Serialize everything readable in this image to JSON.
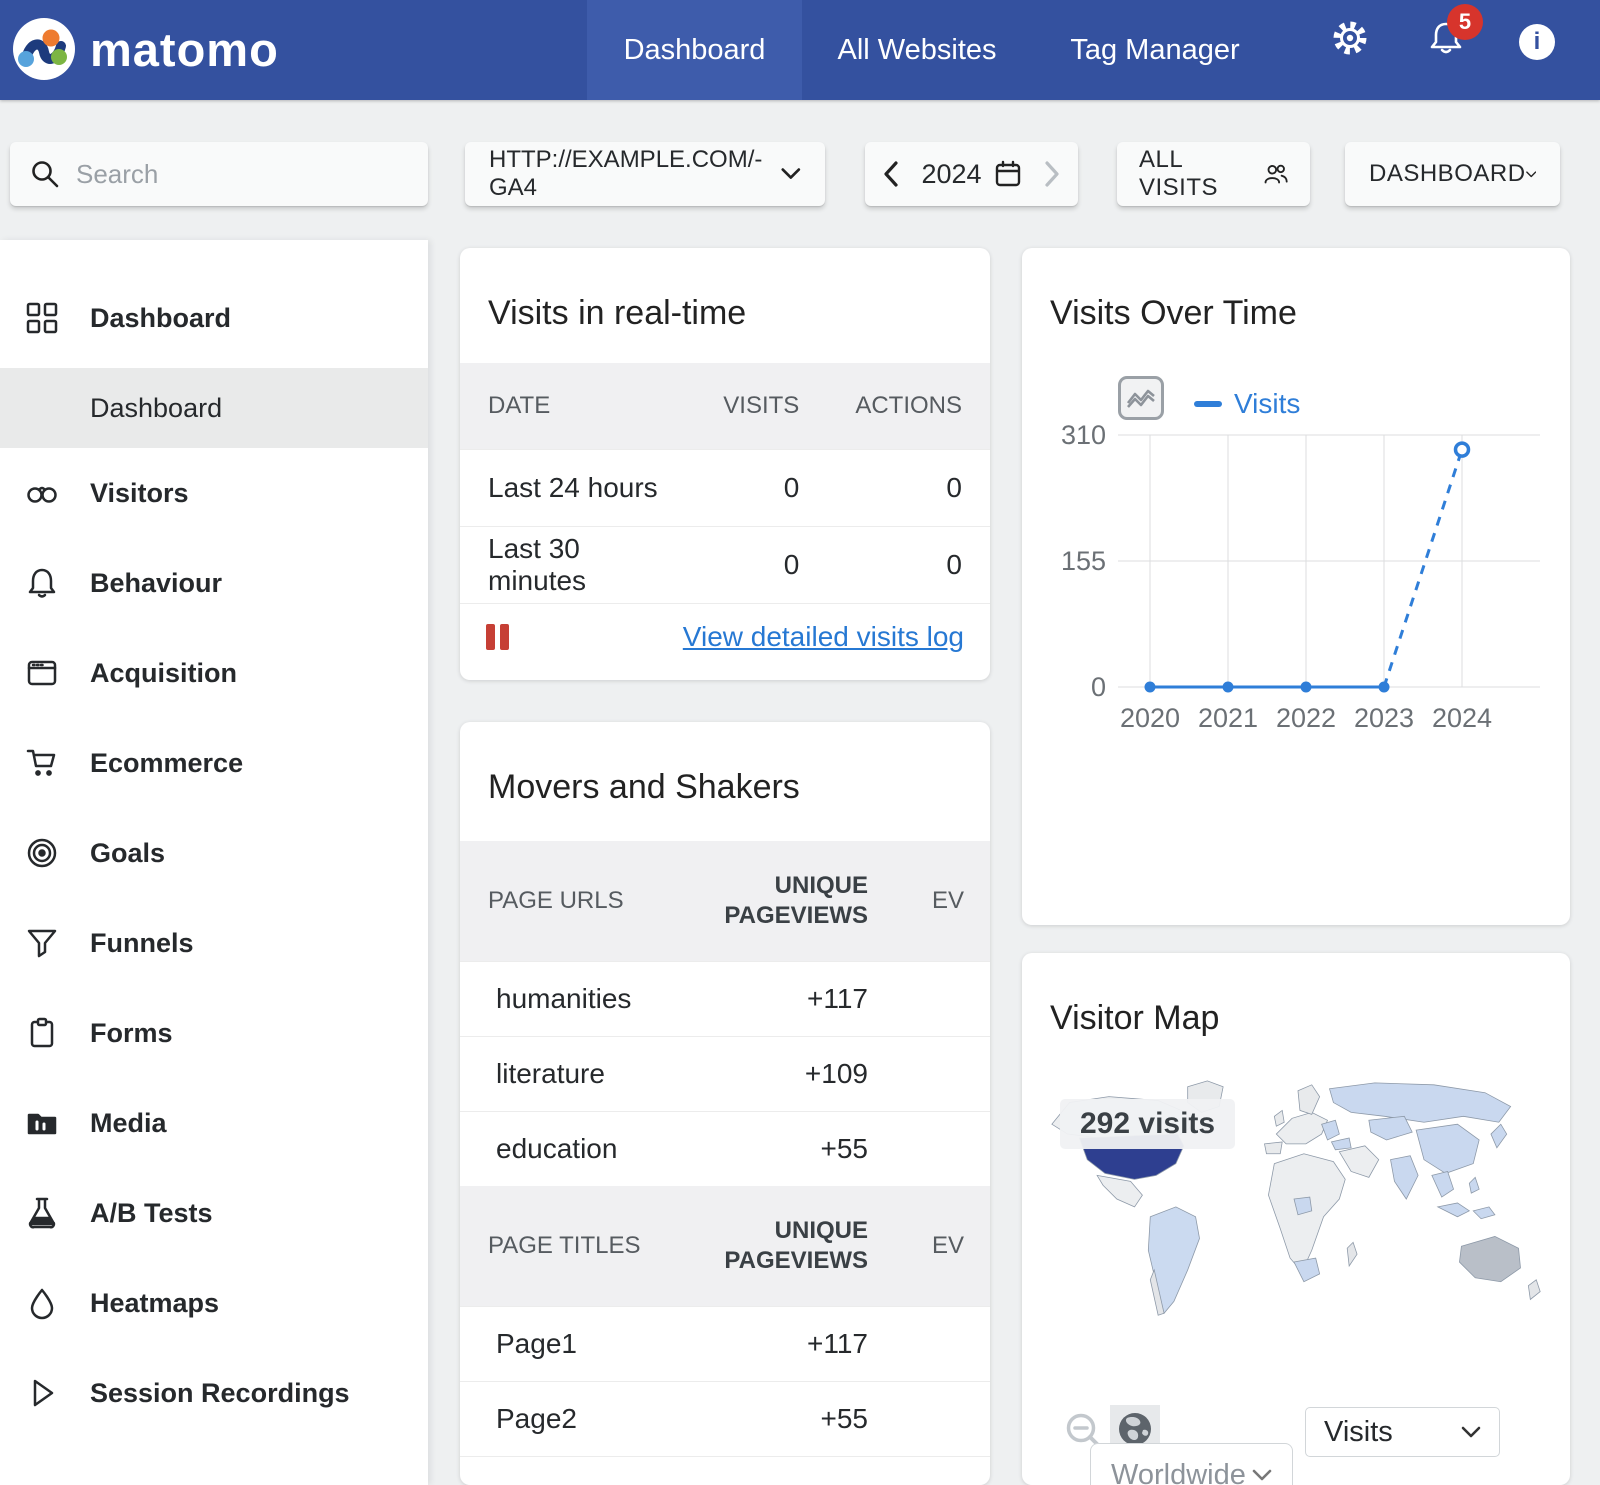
{
  "colors": {
    "navbar": "#34519f",
    "navbar_active_tab": "#3e5cab",
    "accent_chart_blue": "#2f7ed8",
    "link_blue": "#2678d3",
    "alert_red": "#d7342c",
    "map_usa_fill": "#2e3f90",
    "map_visited_fill": "#c9d8ef",
    "map_australia_fill": "#b9bfc8"
  },
  "navbar": {
    "brand": "matomo",
    "tabs": [
      {
        "label": "Dashboard",
        "active": true
      },
      {
        "label": "All Websites",
        "active": false
      },
      {
        "label": "Tag Manager",
        "active": false
      }
    ],
    "notification_count": "5",
    "info_label": "i"
  },
  "toolbar": {
    "search_placeholder": "Search",
    "site_selector": "HTTP://EXAMPLE.COM/- GA4",
    "period": "2024",
    "segment": "ALL VISITS",
    "dashboard_selector": "DASHBOARD"
  },
  "sidebar": {
    "items": [
      {
        "label": "Dashboard",
        "icon": "grid-icon"
      },
      {
        "label": "Dashboard",
        "icon": null,
        "sub": true,
        "active": true
      },
      {
        "label": "Visitors",
        "icon": "binoculars-icon"
      },
      {
        "label": "Behaviour",
        "icon": "bell-icon"
      },
      {
        "label": "Acquisition",
        "icon": "browser-icon"
      },
      {
        "label": "Ecommerce",
        "icon": "cart-icon"
      },
      {
        "label": "Goals",
        "icon": "target-icon"
      },
      {
        "label": "Funnels",
        "icon": "funnel-icon"
      },
      {
        "label": "Forms",
        "icon": "clipboard-icon"
      },
      {
        "label": "Media",
        "icon": "media-icon"
      },
      {
        "label": "A/B Tests",
        "icon": "flask-icon"
      },
      {
        "label": "Heatmaps",
        "icon": "droplet-icon"
      },
      {
        "label": "Session Recordings",
        "icon": "play-icon"
      }
    ]
  },
  "widgets": {
    "realtime": {
      "title": "Visits in real-time",
      "columns": [
        "DATE",
        "VISITS",
        "ACTIONS"
      ],
      "rows": [
        [
          "Last 24 hours",
          "0",
          "0"
        ],
        [
          "Last 30 minutes",
          "0",
          "0"
        ]
      ],
      "link": "View detailed visits log"
    },
    "movers": {
      "title": "Movers and Shakers",
      "sections": [
        {
          "col1": "PAGE URLS",
          "col2_line1": "UNIQUE",
          "col2_line2": "PAGEVIEWS",
          "col3": "EV",
          "rows": [
            [
              "humanities",
              "+117"
            ],
            [
              "literature",
              "+109"
            ],
            [
              "education",
              "+55"
            ]
          ]
        },
        {
          "col1": "PAGE TITLES",
          "col2_line1": "UNIQUE",
          "col2_line2": "PAGEVIEWS",
          "col3": "EV",
          "rows": [
            [
              "Page1",
              "+117"
            ],
            [
              "Page2",
              "+55"
            ]
          ]
        }
      ]
    },
    "visits_over_time": {
      "title": "Visits Over Time"
    },
    "visitor_map": {
      "title": "Visitor Map",
      "tooltip": "292 visits",
      "region_select": "Worldwide",
      "metric_select": "Visits"
    }
  },
  "chart_data": {
    "type": "line",
    "title": "Visits Over Time",
    "x": [
      "2020",
      "2021",
      "2022",
      "2023",
      "2024"
    ],
    "series": [
      {
        "name": "Visits",
        "values": [
          0,
          0,
          0,
          0,
          292
        ]
      }
    ],
    "ylim": [
      0,
      310
    ],
    "yticks": [
      0,
      155,
      310
    ],
    "grid": true,
    "legend_position": "top",
    "incomplete_last_point": true
  }
}
